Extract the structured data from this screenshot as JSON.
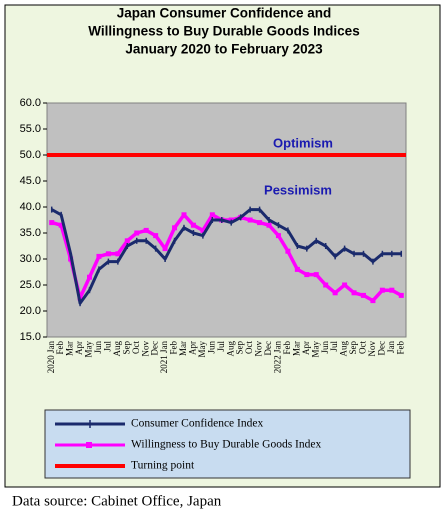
{
  "chart_data": {
    "type": "line",
    "title": [
      "Japan Consumer Confidence and",
      "Willingness to Buy Durable Goods Indices",
      "January 2020 to February 2023"
    ],
    "categories": [
      "2020 Jan",
      "Feb",
      "Mar",
      "Apr",
      "May",
      "Jun",
      "Jul",
      "Aug",
      "Sep",
      "Oct",
      "Nov",
      "Dec",
      "2021 Jan",
      "Feb",
      "Mar",
      "Apr",
      "May",
      "Jun",
      "Jul",
      "Aug",
      "Sep",
      "Oct",
      "Nov",
      "Dec",
      "2022 Jan",
      "Feb",
      "Mar",
      "Apr",
      "May",
      "Jun",
      "Jul",
      "Aug",
      "Sep",
      "Oct",
      "Nov",
      "Dec",
      "Jan",
      "Feb"
    ],
    "series": [
      {
        "name": "Consumer Confidence Index",
        "color": "#1a2a6c",
        "values": [
          39.5,
          38.5,
          31,
          21.5,
          24,
          28,
          29.5,
          29.5,
          32.5,
          33.5,
          33.5,
          32,
          30,
          33.5,
          36,
          35,
          34.5,
          37.5,
          37.5,
          37,
          38,
          39.5,
          39.5,
          37.5,
          36.5,
          35.5,
          32.5,
          32,
          33.5,
          32.5,
          30.5,
          32,
          31,
          31,
          29.5,
          31,
          31,
          31
        ]
      },
      {
        "name": "Willingness to Buy Durable Goods Index",
        "color": "#ff00ff",
        "values": [
          37,
          36.5,
          30,
          22.5,
          26.5,
          30.5,
          31,
          31,
          33.5,
          35,
          35.5,
          34.5,
          32,
          36,
          38.5,
          36.5,
          35.5,
          38.5,
          37.5,
          37.5,
          38,
          37.5,
          37,
          36.5,
          34.5,
          31.5,
          28,
          27,
          27,
          25,
          23.5,
          25,
          23.5,
          23,
          22,
          24,
          24,
          23
        ]
      }
    ],
    "reference_line": {
      "name": "Turning point",
      "value": 50,
      "color": "#ff0000"
    },
    "annotations": [
      "Optimism",
      "Pessimism"
    ],
    "ylim": [
      15,
      60
    ],
    "yticks": [
      {
        "value": 15,
        "label": "15.0"
      },
      {
        "value": 20,
        "label": "20.0"
      },
      {
        "value": 25,
        "label": "25.0"
      },
      {
        "value": 30,
        "label": "30.0"
      },
      {
        "value": 35,
        "label": "35.0"
      },
      {
        "value": 40,
        "label": "40.0"
      },
      {
        "value": 45,
        "label": "45.0"
      },
      {
        "value": 50,
        "label": "50.0"
      },
      {
        "value": 55,
        "label": "55.0"
      },
      {
        "value": 60,
        "label": "60.0"
      }
    ],
    "source": "Data source: Cabinet Office, Japan"
  }
}
